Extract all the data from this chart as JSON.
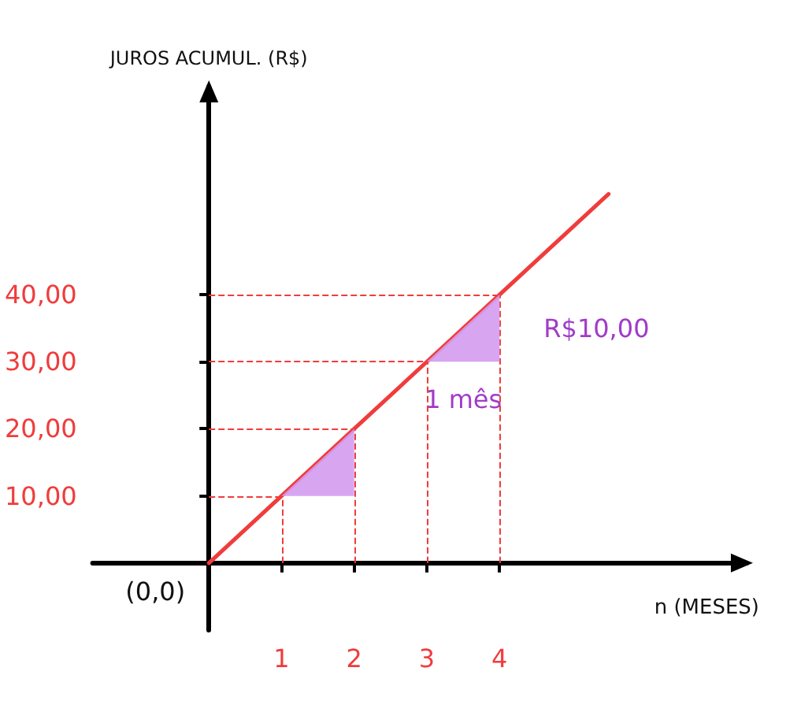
{
  "chart_data": {
    "type": "line",
    "xlabel": "n (MESES)",
    "ylabel": "JUROS ACUMUL. (R$)",
    "x": [
      0,
      1,
      2,
      3,
      4,
      5.5
    ],
    "series": [
      {
        "color": "#f03c3c",
        "values": [
          0,
          10,
          20,
          30,
          40,
          55
        ]
      }
    ],
    "xlim": [
      -1.6,
      7.4
    ],
    "ylim": [
      -10,
      71
    ],
    "xticks": [
      1,
      2,
      3,
      4
    ],
    "yticks": [
      {
        "value": 10,
        "label": "10,00"
      },
      {
        "value": 20,
        "label": "20,00"
      },
      {
        "value": 30,
        "label": "30,00"
      },
      {
        "value": 40,
        "label": "40,00"
      }
    ],
    "ref_lines": [
      {
        "axis": "y",
        "value": 10,
        "color": "#f03c3c",
        "line_style": "dashed"
      },
      {
        "axis": "y",
        "value": 20,
        "color": "#f03c3c",
        "line_style": "dashed"
      },
      {
        "axis": "y",
        "value": 30,
        "color": "#f03c3c",
        "line_style": "dashed"
      },
      {
        "axis": "y",
        "value": 40,
        "color": "#f03c3c",
        "line_style": "dashed"
      },
      {
        "axis": "x",
        "value": 1,
        "color": "#f03c3c",
        "line_style": "dashed"
      },
      {
        "axis": "x",
        "value": 2,
        "color": "#f03c3c",
        "line_style": "dashed"
      },
      {
        "axis": "x",
        "value": 3,
        "color": "#f03c3c",
        "line_style": "dashed"
      },
      {
        "axis": "x",
        "value": 4,
        "color": "#f03c3c",
        "line_style": "dashed"
      }
    ],
    "annotations": [
      "(0,0)",
      "R$10,00",
      "1 mês"
    ],
    "grid": false,
    "marker": "none",
    "line_style": "solid"
  }
}
